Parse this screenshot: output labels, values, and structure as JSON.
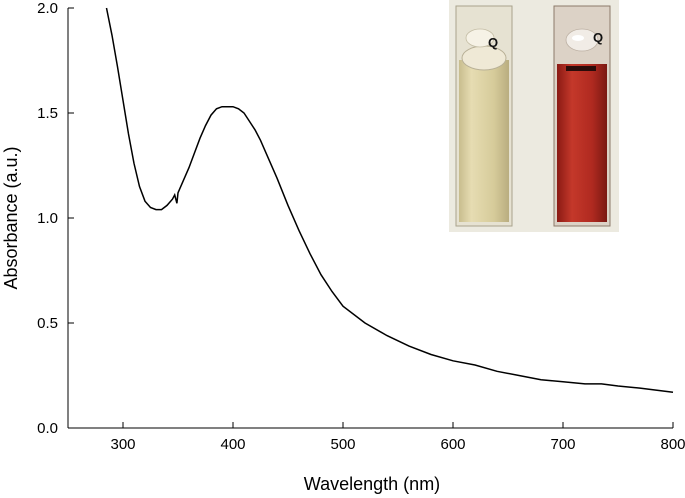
{
  "chart_data": {
    "type": "line",
    "xlabel": "Wavelength (nm)",
    "ylabel": "Absorbance (a.u.)",
    "xlim": [
      250,
      800
    ],
    "ylim": [
      0.0,
      2.0
    ],
    "x_ticks": [
      300,
      400,
      500,
      600,
      700,
      800
    ],
    "x_tick_labels": [
      "300",
      "400",
      "500",
      "600",
      "700",
      "800"
    ],
    "y_ticks": [
      0.0,
      0.5,
      1.0,
      1.5,
      2.0
    ],
    "y_tick_labels": [
      "0.0",
      "0.5",
      "1.0",
      "1.5",
      "2.0"
    ],
    "grid": false,
    "legend": "none",
    "line_color": "#000000",
    "series": [
      {
        "x": [
          285,
          290,
          295,
          300,
          305,
          310,
          315,
          320,
          325,
          330,
          335,
          340,
          345,
          347,
          349,
          350,
          355,
          360,
          365,
          370,
          375,
          380,
          385,
          390,
          395,
          400,
          405,
          410,
          415,
          420,
          425,
          430,
          440,
          450,
          460,
          470,
          480,
          490,
          500,
          520,
          540,
          560,
          580,
          600,
          620,
          640,
          660,
          680,
          700,
          720,
          735,
          750,
          770,
          800
        ],
        "y": [
          2.0,
          1.87,
          1.72,
          1.56,
          1.4,
          1.26,
          1.15,
          1.08,
          1.05,
          1.04,
          1.04,
          1.06,
          1.09,
          1.11,
          1.07,
          1.12,
          1.18,
          1.24,
          1.31,
          1.38,
          1.44,
          1.49,
          1.52,
          1.53,
          1.53,
          1.53,
          1.52,
          1.5,
          1.46,
          1.42,
          1.37,
          1.31,
          1.19,
          1.06,
          0.94,
          0.83,
          0.73,
          0.65,
          0.58,
          0.5,
          0.44,
          0.39,
          0.35,
          0.32,
          0.3,
          0.27,
          0.25,
          0.23,
          0.22,
          0.21,
          0.21,
          0.2,
          0.19,
          0.17
        ]
      }
    ]
  },
  "inset": {
    "left_cuvette": {
      "label": "Q",
      "liquid_color": "#d8cc9c"
    },
    "right_cuvette": {
      "label": "Q",
      "liquid_color": "#b52a20"
    },
    "background_color": "#eceae0"
  }
}
